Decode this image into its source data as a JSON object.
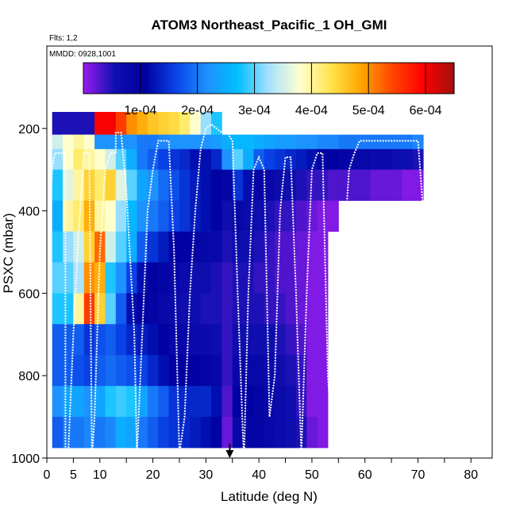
{
  "chart_data": {
    "type": "heatmap",
    "title": "ATOM3 Northeast_Pacific_1 OH_GMI",
    "subtitle_flights": "Flts: 1,2",
    "subtitle_dates": "MMDD: 0928,1001",
    "xlabel": "Latitude (deg N)",
    "ylabel": "PSXC (mbar)",
    "xlim": [
      0,
      84
    ],
    "ylim": [
      1000,
      0
    ],
    "x_ticks": [
      0,
      5,
      10,
      20,
      30,
      40,
      50,
      60,
      70,
      80
    ],
    "x_minor_ticks": [
      15,
      25,
      35,
      45,
      55,
      65,
      75
    ],
    "y_ticks": [
      200,
      400,
      600,
      800,
      1000
    ],
    "colorbar": {
      "min": 0,
      "max": 0.00065,
      "tick_values": [
        0.0001,
        0.0002,
        0.0003,
        0.0004,
        0.0005,
        0.0006
      ],
      "tick_labels": [
        "1e-04",
        "2e-04",
        "3e-04",
        "4e-04",
        "5e-04",
        "6e-04"
      ],
      "colors": [
        "#9a1cf0",
        "#1010b0",
        "#0000a0",
        "#0a44e8",
        "#1e90ff",
        "#00bfff",
        "#a6e1ff",
        "#ffffd0",
        "#ffe44d",
        "#ffa500",
        "#ff4500",
        "#ff0000",
        "#a01010"
      ]
    },
    "heat_columns": [
      {
        "lat": 0.5,
        "values": [
          0,
          0,
          0,
          0,
          0,
          0,
          0,
          0,
          0,
          0,
          0,
          0
        ]
      },
      {
        "lat": 2,
        "values": [
          5e-05,
          0.00035,
          0.00032,
          0.00028,
          0.00025,
          0.00028,
          0.0003,
          0.00028,
          0.00018,
          0.00018,
          0.00022,
          0.00018
        ]
      },
      {
        "lat": 4,
        "values": [
          5e-05,
          0.00038,
          0.00038,
          0.00036,
          0.0004,
          0.00032,
          0.0003,
          0.00028,
          0.00018,
          0.00018,
          0.00024,
          0.0002
        ]
      },
      {
        "lat": 6,
        "values": [
          5e-05,
          0.0004,
          0.00042,
          0.0004,
          0.00042,
          0.00035,
          0.00033,
          0.0004,
          0.00018,
          0.00017,
          0.00024,
          0.0002
        ]
      },
      {
        "lat": 8,
        "values": [
          5e-05,
          0.00038,
          0.0004,
          0.00045,
          0.00048,
          0.00045,
          0.0005,
          0.00055,
          0.00015,
          0.00016,
          0.00022,
          0.00021
        ]
      },
      {
        "lat": 10,
        "values": [
          0.0006,
          0.00022,
          0.00038,
          0.00042,
          0.0004,
          0.00052,
          0.00048,
          0.00045,
          0.00017,
          0.00018,
          0.00024,
          0.0002
        ]
      },
      {
        "lat": 12,
        "values": [
          0.0006,
          0.00022,
          0.00035,
          0.00045,
          0.00038,
          0.00035,
          0.00028,
          0.0003,
          0.00018,
          0.00019,
          0.00028,
          0.00021
        ]
      },
      {
        "lat": 14,
        "values": [
          0.00055,
          0.00022,
          0.0003,
          0.00036,
          0.00032,
          0.0003,
          0.00022,
          0.00018,
          0.00016,
          0.00018,
          0.00029,
          0.00025
        ]
      },
      {
        "lat": 16,
        "values": [
          0.0005,
          0.00022,
          0.00025,
          0.0003,
          0.00026,
          0.00025,
          0.00016,
          0.00012,
          0.00014,
          0.00017,
          0.00028,
          0.00024
        ]
      },
      {
        "lat": 18,
        "values": [
          0.00048,
          0.0002,
          0.0002,
          0.00024,
          0.00022,
          0.00018,
          0.00012,
          0.0001,
          0.00013,
          0.00016,
          0.00024,
          0.0002
        ]
      },
      {
        "lat": 20,
        "values": [
          0.00046,
          0.0002,
          0.00018,
          0.00022,
          0.0002,
          0.00015,
          0.0001,
          9e-05,
          0.00012,
          0.00014,
          0.0002,
          0.00018
        ]
      },
      {
        "lat": 22,
        "values": [
          0.00045,
          0.00021,
          0.00016,
          0.00019,
          0.00018,
          0.00013,
          9e-05,
          8e-05,
          0.0001,
          0.00012,
          0.00018,
          0.00016
        ]
      },
      {
        "lat": 24,
        "values": [
          0.00044,
          0.00022,
          0.00015,
          0.00017,
          0.00016,
          0.00011,
          8e-05,
          7e-05,
          8e-05,
          0.0001,
          0.00015,
          0.00015
        ]
      },
      {
        "lat": 26,
        "values": [
          0.00042,
          0.00022,
          0.00014,
          0.00015,
          0.00015,
          0.0001,
          7e-05,
          6e-05,
          8e-05,
          0.0001,
          0.00014,
          0.00014
        ]
      },
      {
        "lat": 28,
        "values": [
          0.00038,
          0.00022,
          0.00012,
          0.00013,
          0.00013,
          9e-05,
          6e-05,
          6e-05,
          7e-05,
          0.0001,
          0.00014,
          0.00013
        ]
      },
      {
        "lat": 30,
        "values": [
          0.00032,
          0.00022,
          0.00012,
          0.00012,
          0.00012,
          8e-05,
          6e-05,
          5e-05,
          7e-05,
          9e-05,
          0.00014,
          0.00012
        ]
      },
      {
        "lat": 32,
        "values": [
          0.00028,
          0.00023,
          0.00014,
          0.00011,
          0.00011,
          8e-05,
          5e-05,
          5e-05,
          6e-05,
          8e-05,
          0.00012,
          0.0001
        ]
      },
      {
        "lat": 34,
        "values": [
          0,
          0.00025,
          0.00022,
          9e-05,
          6e-05,
          5e-05,
          4e-05,
          4e-05,
          4e-05,
          4e-05,
          3e-05,
          2e-05
        ]
      },
      {
        "lat": 36,
        "values": [
          0,
          0.00026,
          0.0003,
          0.00015,
          8e-05,
          6e-05,
          5e-05,
          5e-05,
          6e-05,
          8e-05,
          0.0001,
          8e-05
        ]
      },
      {
        "lat": 38,
        "values": [
          0,
          0.00026,
          0.00025,
          0.00012,
          7e-05,
          6e-05,
          5e-05,
          5e-05,
          6e-05,
          8e-05,
          0.0001,
          9e-05
        ]
      },
      {
        "lat": 40,
        "values": [
          0,
          0.00025,
          0.00018,
          9e-05,
          6e-05,
          5e-05,
          4e-05,
          5e-05,
          6e-05,
          8e-05,
          9e-05,
          9e-05
        ]
      },
      {
        "lat": 42,
        "values": [
          0,
          0.00024,
          0.00016,
          8e-05,
          5e-05,
          4e-05,
          4e-05,
          4e-05,
          6e-05,
          7e-05,
          8e-05,
          8e-05
        ]
      },
      {
        "lat": 44,
        "values": [
          0,
          0.00023,
          0.00015,
          7e-05,
          4e-05,
          3e-05,
          3e-05,
          4e-05,
          5e-05,
          6e-05,
          7e-05,
          7e-05
        ]
      },
      {
        "lat": 46,
        "values": [
          0,
          0.00023,
          0.00014,
          6e-05,
          4e-05,
          3e-05,
          3e-05,
          3e-05,
          4e-05,
          5e-05,
          6e-05,
          6e-05
        ]
      },
      {
        "lat": 48,
        "values": [
          0,
          0.00022,
          0.00013,
          5e-05,
          3e-05,
          2e-05,
          2e-05,
          2e-05,
          3e-05,
          4e-05,
          4e-05,
          5e-05
        ]
      },
      {
        "lat": 50,
        "values": [
          0,
          0.00022,
          0.00012,
          4e-05,
          2e-05,
          1e-05,
          1e-05,
          1e-05,
          1e-05,
          1e-05,
          1e-05,
          2e-05
        ]
      },
      {
        "lat": 52,
        "values": [
          0,
          0.00021,
          0.00011,
          4e-05,
          1e-05,
          1e-05,
          1e-05,
          1e-05,
          1e-05,
          1e-05,
          1e-05,
          1e-05
        ]
      },
      {
        "lat": 54,
        "values": [
          0,
          0.00021,
          0.0001,
          3e-05,
          1e-05,
          0,
          0,
          0,
          0,
          0,
          0,
          0
        ]
      },
      {
        "lat": 56,
        "values": [
          0,
          0.0002,
          9e-05,
          3e-05,
          0,
          0,
          0,
          0,
          0,
          0,
          0,
          0
        ]
      },
      {
        "lat": 58,
        "values": [
          0,
          0.0002,
          8e-05,
          3e-05,
          0,
          0,
          0,
          0,
          0,
          0,
          0,
          0
        ]
      },
      {
        "lat": 60,
        "values": [
          0,
          0.0002,
          8e-05,
          3e-05,
          0,
          0,
          0,
          0,
          0,
          0,
          0,
          0
        ]
      },
      {
        "lat": 62,
        "values": [
          0,
          0.0002,
          7e-05,
          2e-05,
          0,
          0,
          0,
          0,
          0,
          0,
          0,
          0
        ]
      },
      {
        "lat": 64,
        "values": [
          0,
          0.0002,
          7e-05,
          2e-05,
          0,
          0,
          0,
          0,
          0,
          0,
          0,
          0
        ]
      },
      {
        "lat": 66,
        "values": [
          0,
          0.0002,
          6e-05,
          2e-05,
          0,
          0,
          0,
          0,
          0,
          0,
          0,
          0
        ]
      },
      {
        "lat": 68,
        "values": [
          0,
          0.0002,
          6e-05,
          1e-05,
          0,
          0,
          0,
          0,
          0,
          0,
          0,
          0
        ]
      },
      {
        "lat": 70,
        "values": [
          0,
          0.00021,
          5e-05,
          1e-05,
          0,
          0,
          0,
          0,
          0,
          0,
          0,
          0
        ]
      }
    ],
    "pressure_level_bounds": [
      [
        160,
        215
      ],
      [
        215,
        250
      ],
      [
        250,
        300
      ],
      [
        300,
        375
      ],
      [
        375,
        450
      ],
      [
        450,
        525
      ],
      [
        525,
        600
      ],
      [
        600,
        675
      ],
      [
        675,
        750
      ],
      [
        750,
        825
      ],
      [
        825,
        900
      ],
      [
        900,
        975
      ]
    ],
    "flight_track": [
      [
        0,
        1000
      ],
      [
        0.2,
        600
      ],
      [
        0.6,
        400
      ],
      [
        1,
        300
      ],
      [
        1.5,
        260
      ],
      [
        2.5,
        260
      ],
      [
        3.5,
        260
      ],
      [
        3.5,
        1000
      ],
      [
        4,
        1000
      ],
      [
        5,
        700
      ],
      [
        6,
        450
      ],
      [
        7,
        260
      ],
      [
        8,
        260
      ],
      [
        8.5,
        1000
      ],
      [
        9,
        900
      ],
      [
        10,
        500
      ],
      [
        11,
        300
      ],
      [
        12,
        260
      ],
      [
        13,
        260
      ],
      [
        13,
        210
      ],
      [
        14,
        210
      ],
      [
        15,
        350
      ],
      [
        16.5,
        700
      ],
      [
        17,
        990
      ],
      [
        18,
        700
      ],
      [
        19,
        400
      ],
      [
        20,
        300
      ],
      [
        21,
        230
      ],
      [
        23,
        230
      ],
      [
        24,
        500
      ],
      [
        25,
        990
      ],
      [
        26,
        900
      ],
      [
        27,
        600
      ],
      [
        28,
        400
      ],
      [
        29,
        250
      ],
      [
        30,
        200
      ],
      [
        31,
        190
      ],
      [
        32,
        200
      ],
      [
        33,
        210
      ],
      [
        34,
        210
      ],
      [
        35,
        230
      ],
      [
        36,
        600
      ],
      [
        37,
        950
      ],
      [
        37.2,
        1000
      ],
      [
        38,
        600
      ],
      [
        39,
        300
      ],
      [
        40,
        270
      ],
      [
        41,
        300
      ],
      [
        42,
        900
      ],
      [
        43,
        800
      ],
      [
        44,
        400
      ],
      [
        45,
        270
      ],
      [
        46,
        270
      ],
      [
        47,
        600
      ],
      [
        48,
        990
      ],
      [
        49,
        600
      ],
      [
        50,
        300
      ],
      [
        51,
        260
      ],
      [
        52,
        260
      ],
      [
        53,
        800
      ],
      [
        54,
        990
      ],
      [
        55,
        800
      ],
      [
        56,
        500
      ],
      [
        57,
        300
      ],
      [
        58,
        260
      ],
      [
        59,
        230
      ],
      [
        60,
        230
      ],
      [
        61,
        230
      ],
      [
        62,
        230
      ],
      [
        65,
        230
      ],
      [
        70,
        230
      ],
      [
        71,
        400
      ],
      [
        72,
        800
      ],
      [
        73,
        990
      ]
    ],
    "marker": {
      "lat": 34.5,
      "pressure": 1000
    }
  }
}
